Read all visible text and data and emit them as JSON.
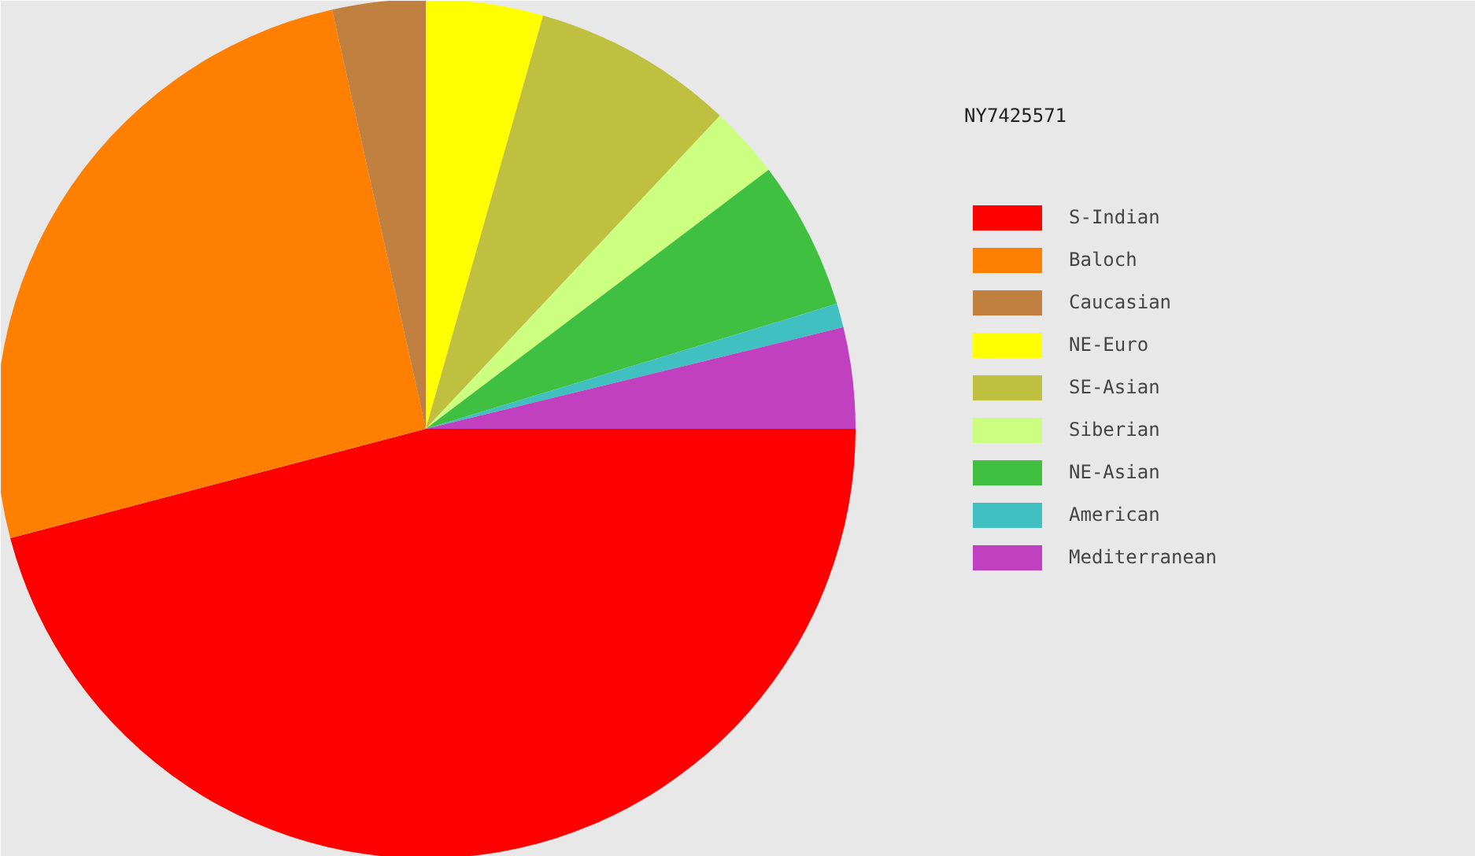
{
  "chart_data": {
    "type": "pie",
    "title": "NY7425571",
    "categories": [
      "S-Indian",
      "Baloch",
      "Caucasian",
      "NE-Euro",
      "SE-Asian",
      "Siberian",
      "NE-Asian",
      "American",
      "Mediterranean"
    ],
    "values": [
      45.9,
      25.6,
      3.5,
      4.4,
      7.6,
      2.7,
      5.6,
      0.9,
      3.8
    ],
    "colors": [
      "#ff0000",
      "#ff8000",
      "#c08040",
      "#ffff00",
      "#c0c040",
      "#ccff80",
      "#40c040",
      "#40c0c0",
      "#c040c0"
    ],
    "legend": "right"
  }
}
